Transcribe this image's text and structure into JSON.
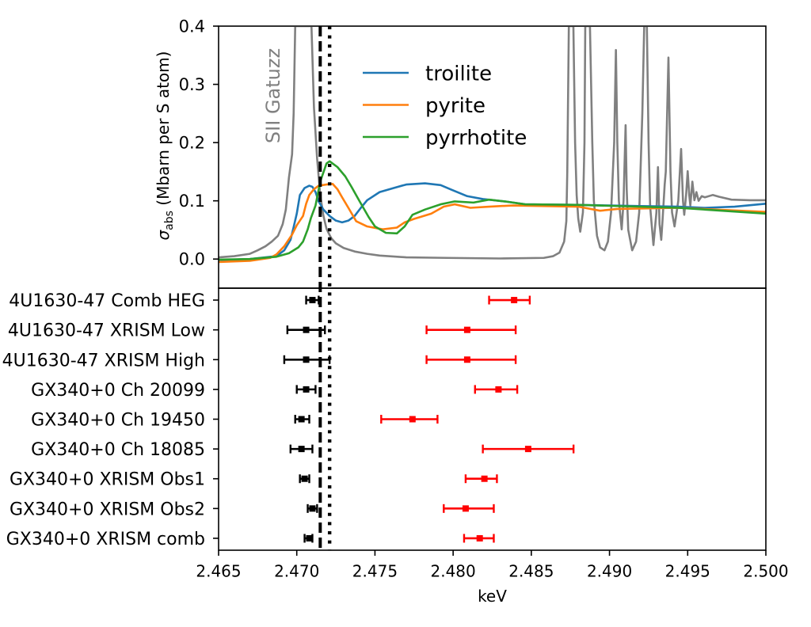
{
  "chart_data": [
    {
      "panel": "top",
      "type": "line",
      "title": "",
      "xlabel": "",
      "ylabel": {
        "symbol": "σ",
        "subscript": "abs",
        "text": " (Mbarn per S atom)"
      },
      "xlim": [
        2.465,
        2.5
      ],
      "ylim": [
        -0.05,
        0.4
      ],
      "yticks": {
        "values": [
          0.0,
          0.1,
          0.2,
          0.3,
          0.4
        ],
        "labels": [
          "0.0",
          "0.1",
          "0.2",
          "0.3",
          "0.4"
        ]
      },
      "grid": false,
      "legend": {
        "position": "top-center",
        "entries": [
          "troilite",
          "pyrite",
          "pyrrhotite"
        ]
      },
      "series": [
        {
          "name": "troilite",
          "color": "#1f77b4",
          "points": [
            [
              2.465,
              -0.002
            ],
            [
              2.467,
              0.0
            ],
            [
              2.4687,
              0.005
            ],
            [
              2.4692,
              0.015
            ],
            [
              2.4696,
              0.033
            ],
            [
              2.4698,
              0.055
            ],
            [
              2.47,
              0.078
            ],
            [
              2.4702,
              0.11
            ],
            [
              2.4705,
              0.122
            ],
            [
              2.4708,
              0.126
            ],
            [
              2.471,
              0.124
            ],
            [
              2.4712,
              0.115
            ],
            [
              2.4714,
              0.099
            ],
            [
              2.4717,
              0.085
            ],
            [
              2.4721,
              0.074
            ],
            [
              2.4725,
              0.066
            ],
            [
              2.4729,
              0.063
            ],
            [
              2.4733,
              0.066
            ],
            [
              2.4737,
              0.074
            ],
            [
              2.4741,
              0.088
            ],
            [
              2.4745,
              0.101
            ],
            [
              2.4753,
              0.115
            ],
            [
              2.4762,
              0.122
            ],
            [
              2.477,
              0.128
            ],
            [
              2.4782,
              0.13
            ],
            [
              2.4792,
              0.127
            ],
            [
              2.4799,
              0.119
            ],
            [
              2.4809,
              0.108
            ],
            [
              2.4819,
              0.103
            ],
            [
              2.4833,
              0.099
            ],
            [
              2.4846,
              0.094
            ],
            [
              2.488,
              0.093
            ],
            [
              2.492,
              0.091
            ],
            [
              2.4944,
              0.09
            ],
            [
              2.4961,
              0.088
            ],
            [
              2.498,
              0.09
            ],
            [
              2.5,
              0.095
            ]
          ]
        },
        {
          "name": "pyrite",
          "color": "#ff7f0e",
          "points": [
            [
              2.465,
              -0.005
            ],
            [
              2.467,
              -0.003
            ],
            [
              2.4683,
              0.002
            ],
            [
              2.4687,
              0.008
            ],
            [
              2.4692,
              0.022
            ],
            [
              2.4697,
              0.042
            ],
            [
              2.47,
              0.058
            ],
            [
              2.4704,
              0.074
            ],
            [
              2.4706,
              0.095
            ],
            [
              2.4708,
              0.11
            ],
            [
              2.4711,
              0.12
            ],
            [
              2.4714,
              0.126
            ],
            [
              2.4719,
              0.128
            ],
            [
              2.4723,
              0.129
            ],
            [
              2.4726,
              0.12
            ],
            [
              2.4729,
              0.106
            ],
            [
              2.4733,
              0.088
            ],
            [
              2.4738,
              0.065
            ],
            [
              2.4745,
              0.056
            ],
            [
              2.4755,
              0.051
            ],
            [
              2.4764,
              0.054
            ],
            [
              2.4769,
              0.063
            ],
            [
              2.4775,
              0.069
            ],
            [
              2.4786,
              0.078
            ],
            [
              2.4794,
              0.09
            ],
            [
              2.4801,
              0.094
            ],
            [
              2.4811,
              0.088
            ],
            [
              2.4823,
              0.09
            ],
            [
              2.4838,
              0.092
            ],
            [
              2.488,
              0.09
            ],
            [
              2.4894,
              0.083
            ],
            [
              2.4905,
              0.086
            ],
            [
              2.4944,
              0.088
            ],
            [
              2.5,
              0.081
            ]
          ]
        },
        {
          "name": "pyrrhotite",
          "color": "#2ca02c",
          "points": [
            [
              2.465,
              -0.001
            ],
            [
              2.467,
              0.0
            ],
            [
              2.4687,
              0.004
            ],
            [
              2.4695,
              0.01
            ],
            [
              2.4701,
              0.02
            ],
            [
              2.4704,
              0.03
            ],
            [
              2.4707,
              0.051
            ],
            [
              2.4709,
              0.07
            ],
            [
              2.4712,
              0.092
            ],
            [
              2.4715,
              0.133
            ],
            [
              2.4719,
              0.164
            ],
            [
              2.4721,
              0.168
            ],
            [
              2.4726,
              0.158
            ],
            [
              2.4731,
              0.142
            ],
            [
              2.4735,
              0.124
            ],
            [
              2.474,
              0.1
            ],
            [
              2.4746,
              0.072
            ],
            [
              2.475,
              0.056
            ],
            [
              2.4757,
              0.045
            ],
            [
              2.4764,
              0.044
            ],
            [
              2.4769,
              0.056
            ],
            [
              2.4774,
              0.076
            ],
            [
              2.4782,
              0.085
            ],
            [
              2.4792,
              0.094
            ],
            [
              2.4801,
              0.099
            ],
            [
              2.4813,
              0.097
            ],
            [
              2.4823,
              0.102
            ],
            [
              2.4833,
              0.099
            ],
            [
              2.4846,
              0.094
            ],
            [
              2.488,
              0.093
            ],
            [
              2.4944,
              0.088
            ],
            [
              2.5,
              0.078
            ]
          ]
        }
      ],
      "reference_curve": {
        "name": "SII Gatuzz",
        "color": "#808080",
        "points": [
          [
            2.465,
            0.003
          ],
          [
            2.466,
            0.005
          ],
          [
            2.467,
            0.009
          ],
          [
            2.4675,
            0.015
          ],
          [
            2.468,
            0.022
          ],
          [
            2.4684,
            0.03
          ],
          [
            2.4688,
            0.04
          ],
          [
            2.4691,
            0.06
          ],
          [
            2.4693,
            0.085
          ],
          [
            2.4695,
            0.14
          ],
          [
            2.4697,
            0.18
          ],
          [
            2.4698,
            0.25
          ],
          [
            2.4699,
            0.4
          ],
          [
            2.47094,
            0.4
          ],
          [
            2.4711,
            0.26
          ],
          [
            2.4713,
            0.173
          ],
          [
            2.4715,
            0.11
          ],
          [
            2.4717,
            0.075
          ],
          [
            2.4719,
            0.052
          ],
          [
            2.4722,
            0.036
          ],
          [
            2.4725,
            0.027
          ],
          [
            2.473,
            0.019
          ],
          [
            2.4737,
            0.013
          ],
          [
            2.4745,
            0.009
          ],
          [
            2.4753,
            0.006
          ],
          [
            2.477,
            0.003
          ],
          [
            2.4796,
            0.002
          ],
          [
            2.483,
            0.001
          ],
          [
            2.4858,
            0.002
          ],
          [
            2.4864,
            0.005
          ],
          [
            2.4868,
            0.011
          ],
          [
            2.4871,
            0.03
          ],
          [
            2.48724,
            0.065
          ],
          [
            2.4873,
            0.15
          ],
          [
            2.4874,
            0.4
          ],
          [
            2.48769,
            0.4
          ],
          [
            2.4878,
            0.2
          ],
          [
            2.4879,
            0.11
          ],
          [
            2.488,
            0.07
          ],
          [
            2.48813,
            0.047
          ],
          [
            2.4883,
            0.08
          ],
          [
            2.4884,
            0.2
          ],
          [
            2.48845,
            0.4
          ],
          [
            2.48875,
            0.4
          ],
          [
            2.4889,
            0.2
          ],
          [
            2.489,
            0.1
          ],
          [
            2.4892,
            0.04
          ],
          [
            2.4894,
            0.02
          ],
          [
            2.48968,
            0.015
          ],
          [
            2.4899,
            0.03
          ],
          [
            2.4901,
            0.08
          ],
          [
            2.4903,
            0.2
          ],
          [
            2.49041,
            0.359
          ],
          [
            2.4905,
            0.2
          ],
          [
            2.4906,
            0.1
          ],
          [
            2.49078,
            0.051
          ],
          [
            2.4909,
            0.1
          ],
          [
            2.49103,
            0.23
          ],
          [
            2.4911,
            0.12
          ],
          [
            2.4912,
            0.05
          ],
          [
            2.49145,
            0.015
          ],
          [
            2.4917,
            0.03
          ],
          [
            2.4919,
            0.08
          ],
          [
            2.4921,
            0.25
          ],
          [
            2.49222,
            0.4
          ],
          [
            2.49239,
            0.4
          ],
          [
            2.4925,
            0.2
          ],
          [
            2.4926,
            0.09
          ],
          [
            2.49281,
            0.024
          ],
          [
            2.493,
            0.08
          ],
          [
            2.4931,
            0.158
          ],
          [
            2.4932,
            0.06
          ],
          [
            2.49331,
            0.033
          ],
          [
            2.4934,
            0.07
          ],
          [
            2.49353,
            0.128
          ],
          [
            2.4936,
            0.15
          ],
          [
            2.49377,
            0.346
          ],
          [
            2.4939,
            0.15
          ],
          [
            2.494,
            0.08
          ],
          [
            2.49416,
            0.056
          ],
          [
            2.4944,
            0.1
          ],
          [
            2.49458,
            0.189
          ],
          [
            2.4947,
            0.1
          ],
          [
            2.49478,
            0.076
          ],
          [
            2.4949,
            0.11
          ],
          [
            2.495,
            0.151
          ],
          [
            2.4951,
            0.11
          ],
          [
            2.49517,
            0.092
          ],
          [
            2.4953,
            0.133
          ],
          [
            2.49543,
            0.101
          ],
          [
            2.49556,
            0.115
          ],
          [
            2.4957,
            0.1
          ],
          [
            2.4959,
            0.108
          ],
          [
            2.4961,
            0.106
          ],
          [
            2.4966,
            0.11
          ],
          [
            2.497,
            0.107
          ],
          [
            2.4978,
            0.102
          ],
          [
            2.499,
            0.101
          ],
          [
            2.5,
            0.101
          ]
        ]
      },
      "annotations": [
        {
          "text": "SII Gatuzz",
          "x": 2.4685,
          "y": 0.28,
          "rotation": 90,
          "color": "#808080"
        }
      ],
      "vlines": [
        {
          "x": 2.4715,
          "style": "dashed",
          "color": "#000000"
        },
        {
          "x": 2.4721,
          "style": "dotted",
          "color": "#000000"
        }
      ]
    },
    {
      "panel": "bottom",
      "type": "scatter",
      "subtype": "errorbar",
      "xlabel": "keV",
      "ylabel": "",
      "xlim": [
        2.465,
        2.5
      ],
      "ylim": [
        -0.4,
        8.4
      ],
      "xticks": {
        "values": [
          2.465,
          2.47,
          2.475,
          2.48,
          2.485,
          2.49,
          2.495,
          2.5
        ],
        "labels": [
          "2.465",
          "2.470",
          "2.475",
          "2.480",
          "2.485",
          "2.490",
          "2.495",
          "2.500"
        ]
      },
      "grid": false,
      "categories": [
        "4U1630-47 Comb HEG",
        "4U1630-47 XRISM Low",
        "4U1630-47 XRISM High",
        "GX340+0 Ch 20099",
        "GX340+0 Ch 19450",
        "GX340+0 Ch 18085",
        "GX340+0 XRISM Obs1",
        "GX340+0 XRISM Obs2",
        "GX340+0 XRISM comb"
      ],
      "series": [
        {
          "name": "black",
          "color": "#000000",
          "values": [
            2.471,
            2.4706,
            2.4706,
            2.4706,
            2.4703,
            2.4703,
            2.4705,
            2.471,
            2.4708
          ],
          "err": [
            [
              2.4706,
              2.4714
            ],
            [
              2.4694,
              2.4718
            ],
            [
              2.4692,
              2.4721
            ],
            [
              2.47,
              2.4712
            ],
            [
              2.4699,
              2.4708
            ],
            [
              2.4696,
              2.471
            ],
            [
              2.4702,
              2.4708
            ],
            [
              2.4707,
              2.4713
            ],
            [
              2.4705,
              2.471
            ]
          ]
        },
        {
          "name": "red",
          "color": "#ff0000",
          "values": [
            2.4839,
            2.4809,
            2.4809,
            2.4829,
            2.4774,
            2.4848,
            2.482,
            2.4808,
            2.4817
          ],
          "err": [
            [
              2.4823,
              2.4849
            ],
            [
              2.4783,
              2.484
            ],
            [
              2.4783,
              2.484
            ],
            [
              2.4814,
              2.4841
            ],
            [
              2.4754,
              2.479
            ],
            [
              2.4819,
              2.4877
            ],
            [
              2.4808,
              2.4828
            ],
            [
              2.4794,
              2.4826
            ],
            [
              2.4807,
              2.4826
            ]
          ]
        }
      ]
    }
  ]
}
